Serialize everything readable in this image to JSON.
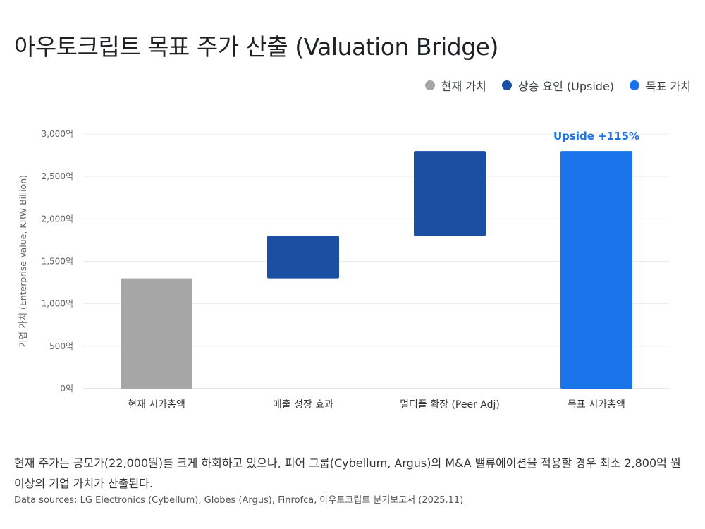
{
  "title": "아우토크립트 목표 주가 산출 (Valuation Bridge)",
  "legend": [
    {
      "label": "현재 가치",
      "color": "#a6a6a6"
    },
    {
      "label": "상승 요인 (Upside)",
      "color": "#1a4fa3"
    },
    {
      "label": "목표 가치",
      "color": "#1a73e8"
    }
  ],
  "chart_data": {
    "type": "bar",
    "subtype": "waterfall",
    "ylabel": "기업 가치 (Enterprise Value, KRW Billion)",
    "ylim": [
      0,
      3000
    ],
    "yticks": [
      0,
      500,
      1000,
      1500,
      2000,
      2500,
      3000
    ],
    "ytick_labels": [
      "0억",
      "500억",
      "1,000억",
      "1,500억",
      "2,000억",
      "2,500억",
      "3,000억"
    ],
    "grid": true,
    "legend_position": "top-right",
    "categories": [
      "현재 시가총액",
      "매출 성장 효과",
      "멀티플 확장 (Peer Adj)",
      "목표 시가총액"
    ],
    "bars": [
      {
        "base": 0,
        "top": 1300,
        "kind": "current"
      },
      {
        "base": 1300,
        "top": 1800,
        "kind": "upside"
      },
      {
        "base": 1800,
        "top": 2800,
        "kind": "upside"
      },
      {
        "base": 0,
        "top": 2800,
        "kind": "target"
      }
    ],
    "annotation": {
      "text": "Upside +115%",
      "category_index": 3,
      "color": "#1a73e8"
    },
    "colors": {
      "current": "#a6a6a6",
      "upside": "#1a4fa3",
      "target": "#1a73e8"
    }
  },
  "description": "현재 주가는 공모가(22,000원)를 크게 하회하고 있으나, 피어 그룹(Cybellum, Argus)의 M&A 밸류에이션을 적용할 경우 최소 2,800억 원 이상의 기업 가치가 산출된다.",
  "sources": {
    "prefix": "Data sources: ",
    "links": [
      "LG Electronics (Cybellum)",
      "Globes (Argus)",
      "Finrofca",
      "아우토크립트 분기보고서 (2025.11)"
    ],
    "separator": ", "
  }
}
